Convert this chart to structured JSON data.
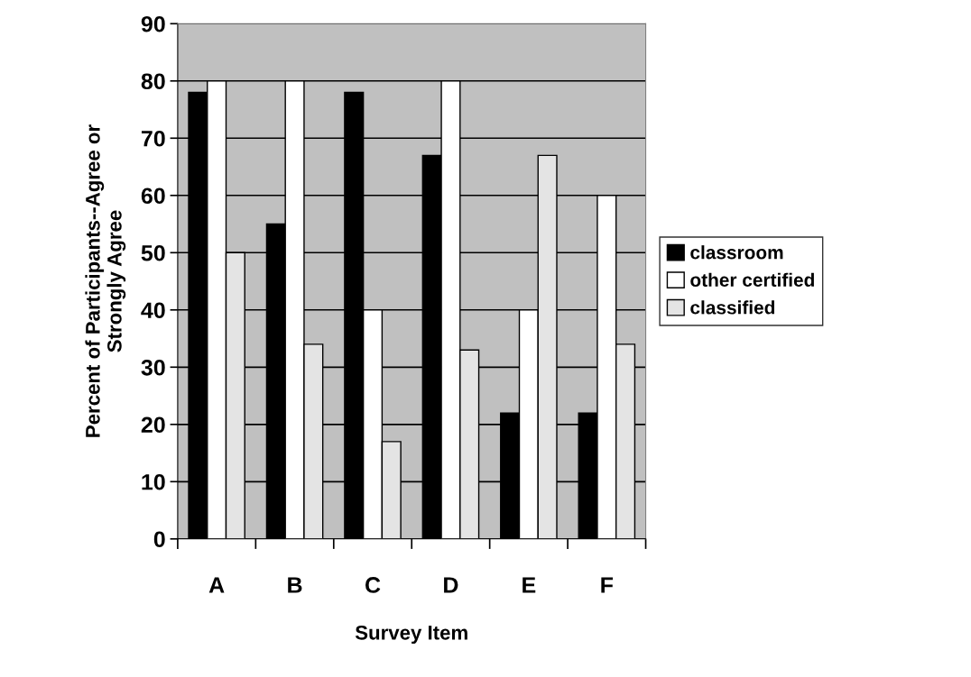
{
  "chart_data": {
    "type": "bar",
    "xlabel": "Survey Item",
    "ylabel": "Percent of Participants--Agree or\nStrongly Agree",
    "categories": [
      "A",
      "B",
      "C",
      "D",
      "E",
      "F"
    ],
    "series": [
      {
        "name": "classroom",
        "color": "#000000",
        "values": [
          78,
          55,
          78,
          67,
          22,
          22
        ]
      },
      {
        "name": "other certified",
        "color": "#ffffff",
        "values": [
          80,
          80,
          40,
          80,
          40,
          60
        ]
      },
      {
        "name": "classified",
        "color": "#e4e4e4",
        "values": [
          50,
          34,
          17,
          33,
          67,
          34
        ]
      }
    ],
    "ylim": [
      0,
      90
    ],
    "yticks": [
      0,
      10,
      20,
      30,
      40,
      50,
      60,
      70,
      80,
      90
    ],
    "grid": "y",
    "legend": "right"
  }
}
